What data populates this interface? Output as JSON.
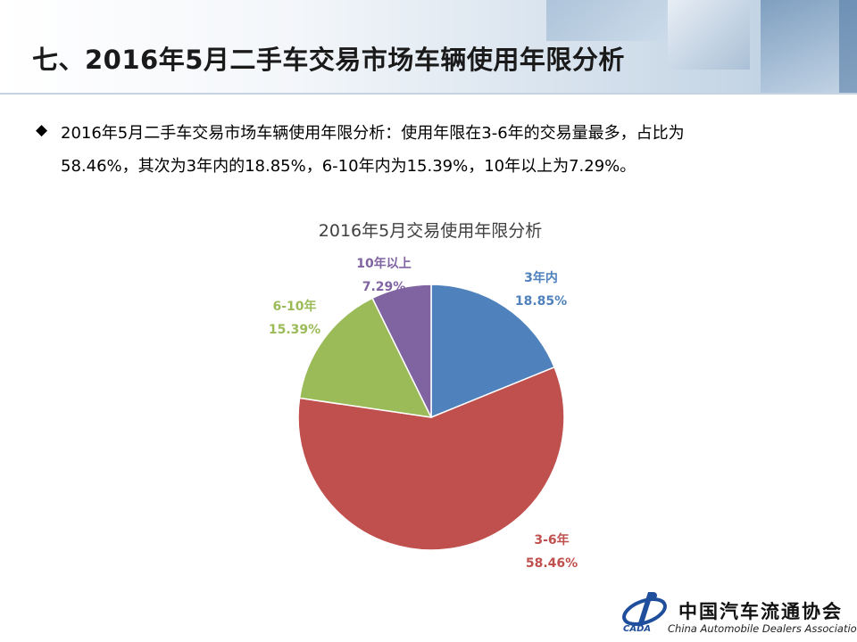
{
  "page": {
    "title": "七、2016年5月二手车交易市场车辆使用年限分析",
    "summary_line1": "2016年5月二手车交易市场车辆使用年限分析：使用年限在3-6年的交易量最多，占比为",
    "summary_line2": "58.46%，其次为3年内的18.85%，6-10年内为15.39%，10年以上为7.29%。",
    "bullet_icon": "diamond-bullet-icon"
  },
  "logo": {
    "cn_name": "中国汽车流通协会",
    "en_name": "China Automobile Dealers Association",
    "abbr": "CADA"
  },
  "chart_data": {
    "type": "pie",
    "title": "2016年5月交易使用年限分析",
    "slices": [
      {
        "label": "3年内",
        "value": 18.85,
        "display": "18.85%",
        "color": "#4F81BD"
      },
      {
        "label": "3-6年",
        "value": 58.46,
        "display": "58.46%",
        "color": "#C0504D"
      },
      {
        "label": "6-10年",
        "value": 15.39,
        "display": "15.39%",
        "color": "#9BBB59"
      },
      {
        "label": "10年以上",
        "value": 7.29,
        "display": "7.29%",
        "color": "#8064A2"
      }
    ],
    "start": "12 o'clock",
    "direction": "clockwise",
    "legend": "none",
    "labels": "outside"
  }
}
